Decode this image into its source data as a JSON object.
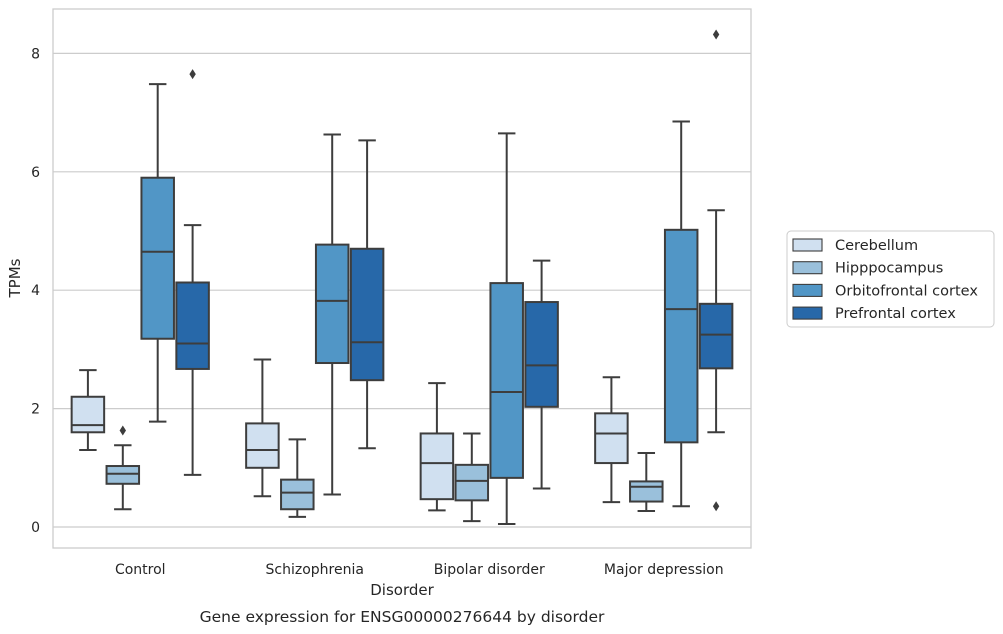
{
  "chart_data": {
    "type": "box",
    "title": "",
    "caption": "Gene expression for ENSG00000276644 by disorder",
    "xlabel": "Disorder",
    "ylabel": "TPMs",
    "ylim": [
      -0.35,
      8.75
    ],
    "yticks": [
      0,
      2,
      4,
      6,
      8
    ],
    "grid": "horizontal",
    "legend_position": "right",
    "categories": [
      "Control",
      "Schizophrenia",
      "Bipolar disorder",
      "Major depression"
    ],
    "series": [
      {
        "name": "Cerebellum",
        "color": "#d0e0f0",
        "boxes": [
          {
            "whislo": 1.3,
            "q1": 1.6,
            "med": 1.72,
            "q3": 2.2,
            "whishi": 2.65,
            "fliers": []
          },
          {
            "whislo": 0.52,
            "q1": 1.0,
            "med": 1.3,
            "q3": 1.75,
            "whishi": 2.83,
            "fliers": []
          },
          {
            "whislo": 0.28,
            "q1": 0.47,
            "med": 1.08,
            "q3": 1.58,
            "whishi": 2.43,
            "fliers": []
          },
          {
            "whislo": 0.42,
            "q1": 1.08,
            "med": 1.58,
            "q3": 1.92,
            "whishi": 2.53,
            "fliers": []
          }
        ]
      },
      {
        "name": "Hipppocampus",
        "color": "#9ac0db",
        "boxes": [
          {
            "whislo": 0.3,
            "q1": 0.73,
            "med": 0.9,
            "q3": 1.03,
            "whishi": 1.38,
            "fliers": [
              1.63
            ]
          },
          {
            "whislo": 0.17,
            "q1": 0.3,
            "med": 0.58,
            "q3": 0.8,
            "whishi": 1.48,
            "fliers": []
          },
          {
            "whislo": 0.1,
            "q1": 0.45,
            "med": 0.78,
            "q3": 1.05,
            "whishi": 1.58,
            "fliers": []
          },
          {
            "whislo": 0.27,
            "q1": 0.43,
            "med": 0.68,
            "q3": 0.77,
            "whishi": 1.25,
            "fliers": []
          }
        ]
      },
      {
        "name": "Orbitofrontal cortex",
        "color": "#5196c6",
        "boxes": [
          {
            "whislo": 1.78,
            "q1": 3.18,
            "med": 4.65,
            "q3": 5.9,
            "whishi": 7.48,
            "fliers": []
          },
          {
            "whislo": 0.55,
            "q1": 2.77,
            "med": 3.82,
            "q3": 4.77,
            "whishi": 6.63,
            "fliers": []
          },
          {
            "whislo": 0.05,
            "q1": 0.83,
            "med": 2.28,
            "q3": 4.12,
            "whishi": 6.65,
            "fliers": []
          },
          {
            "whislo": 0.35,
            "q1": 1.43,
            "med": 3.68,
            "q3": 5.02,
            "whishi": 6.85,
            "fliers": []
          }
        ]
      },
      {
        "name": "Prefrontal cortex",
        "color": "#2768a9",
        "boxes": [
          {
            "whislo": 0.88,
            "q1": 2.67,
            "med": 3.1,
            "q3": 4.13,
            "whishi": 5.1,
            "fliers": [
              7.65
            ]
          },
          {
            "whislo": 1.33,
            "q1": 2.48,
            "med": 3.12,
            "q3": 4.7,
            "whishi": 6.53,
            "fliers": []
          },
          {
            "whislo": 0.65,
            "q1": 2.03,
            "med": 2.73,
            "q3": 3.8,
            "whishi": 4.5,
            "fliers": []
          },
          {
            "whislo": 1.6,
            "q1": 2.68,
            "med": 3.25,
            "q3": 3.77,
            "whishi": 5.35,
            "fliers": [
              0.35,
              8.32
            ]
          }
        ]
      }
    ]
  }
}
